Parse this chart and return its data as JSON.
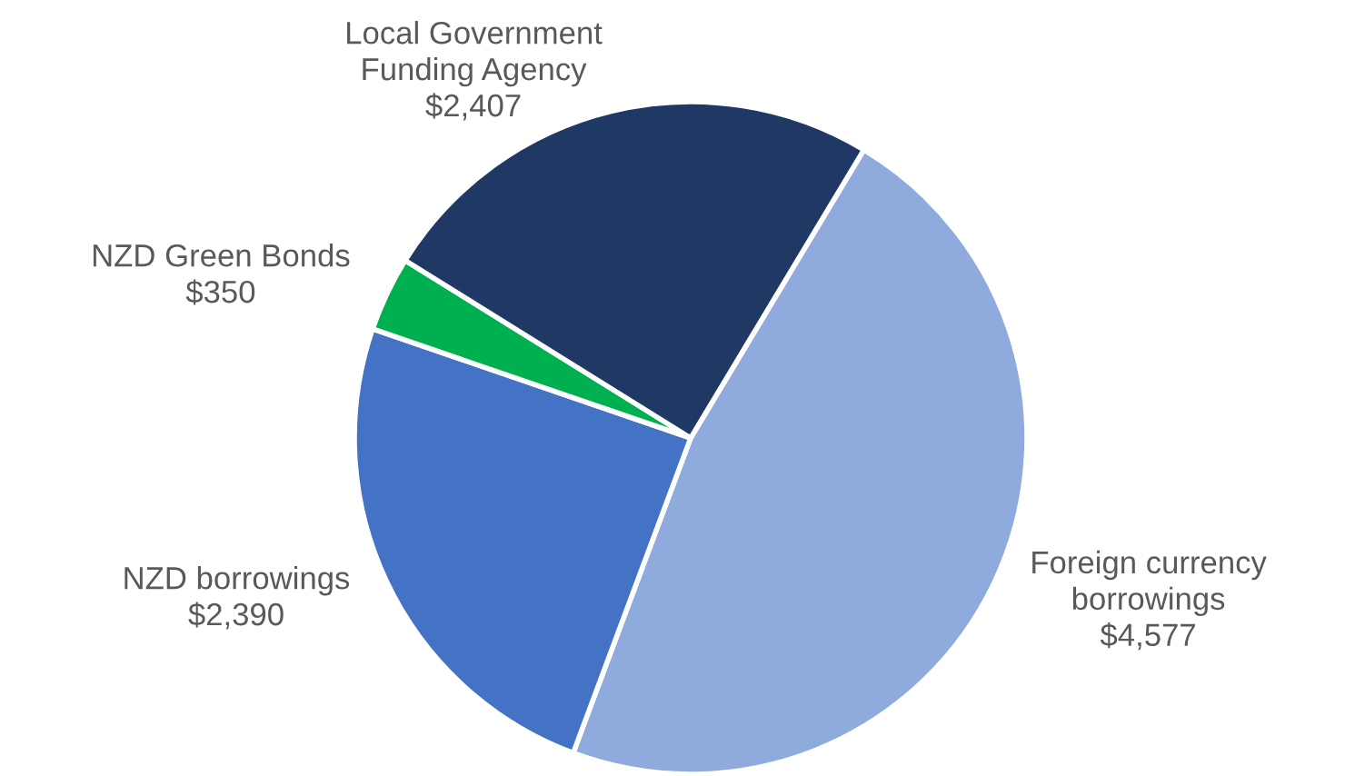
{
  "chart_data": {
    "type": "pie",
    "categories": [
      "Foreign currency\nborrowings",
      "NZD borrowings",
      "NZD Green Bonds",
      "Local Government\nFunding Agency"
    ],
    "values": [
      4577,
      2390,
      350,
      2407
    ],
    "value_labels": [
      "$4,577",
      "$2,390",
      "$350",
      "$2,407"
    ],
    "colors": [
      "#8faadc",
      "#4472c4",
      "#00b050",
      "#1f3864"
    ],
    "legend": false
  }
}
